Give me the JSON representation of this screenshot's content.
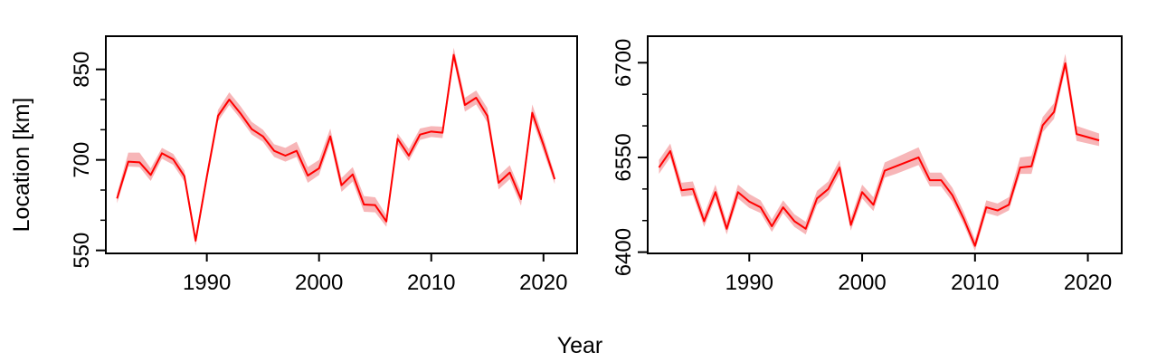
{
  "figure": {
    "xlabel": "Year",
    "ylabel": "Location [km]"
  },
  "style": {
    "line_color": "#ff0000",
    "band_color": "#f7b6b8",
    "axis_color": "#000000",
    "background": "#ffffff"
  },
  "chart_data": [
    {
      "type": "line",
      "title": "",
      "xlabel": "Year",
      "ylabel": "Location [km]",
      "xlim": [
        1981,
        2023
      ],
      "ylim": [
        545,
        905
      ],
      "x_ticks": [
        1990,
        2000,
        2010,
        2020
      ],
      "y_ticks": [
        550,
        700,
        850
      ],
      "y_minor_ticks": [
        600,
        650,
        750,
        800
      ],
      "grid": false,
      "legend": "none",
      "series": [
        {
          "x": [
            1982,
            1983,
            1984,
            1985,
            1986,
            1987,
            1988,
            1989,
            1990,
            1991,
            1992,
            1993,
            1994,
            1995,
            1996,
            1997,
            1998,
            1999,
            2000,
            2001,
            2002,
            2003,
            2004,
            2005,
            2006,
            2007,
            2008,
            2009,
            2010,
            2011,
            2012,
            2013,
            2014,
            2015,
            2016,
            2017,
            2018,
            2019,
            2020,
            2021
          ],
          "values": [
            636,
            697,
            696,
            675,
            711,
            701,
            673,
            566,
            672,
            773,
            800,
            777,
            751,
            739,
            715,
            707,
            715,
            674,
            686,
            739,
            658,
            676,
            626,
            625,
            598,
            735,
            707,
            742,
            747,
            745,
            874,
            791,
            803,
            773,
            662,
            679,
            635,
            778,
            725,
            668
          ],
          "lower": [
            628,
            689,
            688,
            665,
            702,
            692,
            664,
            558,
            663,
            764,
            791,
            768,
            742,
            730,
            705,
            697,
            705,
            662,
            675,
            729,
            647,
            664,
            614,
            613,
            589,
            726,
            698,
            733,
            738,
            736,
            864,
            780,
            792,
            762,
            651,
            668,
            624,
            767,
            714,
            660
          ],
          "upper": [
            644,
            712,
            712,
            686,
            720,
            710,
            682,
            574,
            681,
            783,
            812,
            789,
            763,
            750,
            726,
            720,
            730,
            688,
            700,
            752,
            670,
            688,
            640,
            638,
            608,
            744,
            718,
            752,
            756,
            755,
            886,
            803,
            815,
            786,
            674,
            691,
            647,
            792,
            737,
            676
          ]
        }
      ]
    },
    {
      "type": "line",
      "title": "",
      "xlabel": "Year",
      "ylabel": "",
      "xlim": [
        1981,
        2023
      ],
      "ylim": [
        6398,
        6742
      ],
      "x_ticks": [
        1990,
        2000,
        2010,
        2020
      ],
      "y_ticks": [
        6400,
        6550,
        6700
      ],
      "y_minor_ticks": [
        6450,
        6500,
        6600,
        6650
      ],
      "grid": false,
      "legend": "none",
      "series": [
        {
          "x": [
            1982,
            1983,
            1984,
            1985,
            1986,
            1987,
            1988,
            1989,
            1990,
            1991,
            1992,
            1993,
            1994,
            1995,
            1996,
            1997,
            1998,
            1999,
            2000,
            2001,
            2002,
            2003,
            2005,
            2006,
            2007,
            2008,
            2009,
            2010,
            2011,
            2012,
            2013,
            2014,
            2015,
            2016,
            2017,
            2018,
            2019,
            2021
          ],
          "values": [
            6534,
            6560,
            6498,
            6500,
            6449,
            6495,
            6437,
            6495,
            6480,
            6471,
            6441,
            6471,
            6449,
            6437,
            6485,
            6500,
            6534,
            6443,
            6495,
            6475,
            6529,
            6536,
            6550,
            6514,
            6514,
            6490,
            6453,
            6410,
            6471,
            6466,
            6475,
            6534,
            6536,
            6601,
            6622,
            6699,
            6587,
            6577
          ],
          "lower": [
            6524,
            6550,
            6488,
            6490,
            6440,
            6485,
            6428,
            6485,
            6470,
            6462,
            6432,
            6462,
            6440,
            6428,
            6475,
            6490,
            6524,
            6434,
            6485,
            6465,
            6518,
            6524,
            6538,
            6504,
            6504,
            6480,
            6444,
            6402,
            6462,
            6457,
            6466,
            6524,
            6524,
            6590,
            6611,
            6688,
            6576,
            6568
          ],
          "upper": [
            6546,
            6572,
            6510,
            6512,
            6460,
            6507,
            6448,
            6507,
            6492,
            6482,
            6452,
            6482,
            6460,
            6448,
            6497,
            6512,
            6546,
            6454,
            6507,
            6487,
            6542,
            6550,
            6566,
            6526,
            6526,
            6502,
            6464,
            6420,
            6482,
            6477,
            6487,
            6550,
            6552,
            6614,
            6636,
            6714,
            6600,
            6588
          ]
        }
      ]
    }
  ]
}
